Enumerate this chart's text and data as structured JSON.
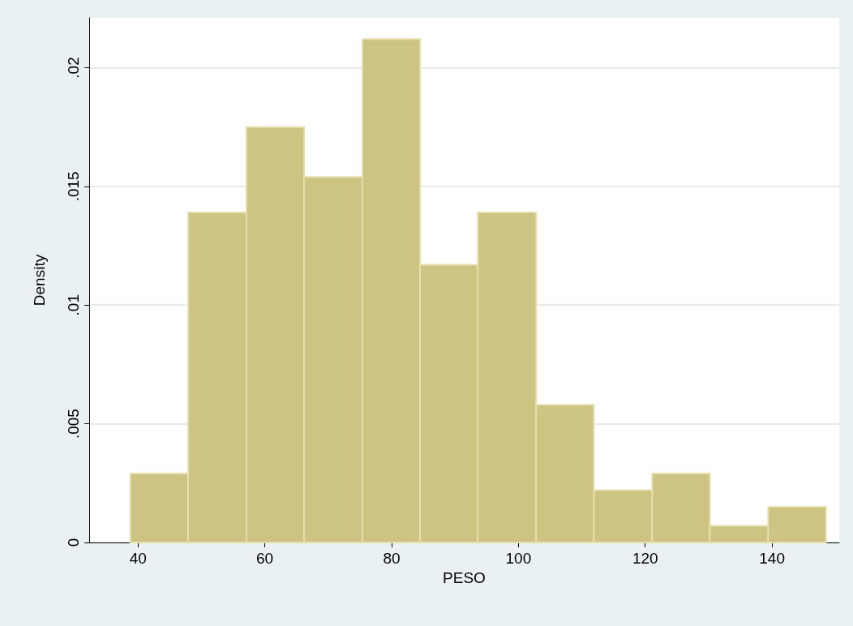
{
  "chart_data": {
    "type": "histogram",
    "xlabel": "PESO",
    "ylabel": "Density",
    "bins": [
      38.8,
      47.9,
      57.1,
      66.2,
      75.4,
      84.5,
      93.6,
      102.8,
      111.9,
      121.1,
      130.2,
      139.4,
      148.5
    ],
    "values": [
      0.0029,
      0.0139,
      0.0175,
      0.0154,
      0.0212,
      0.0117,
      0.0139,
      0.0058,
      0.0022,
      0.0029,
      0.0007,
      0.0015
    ],
    "color": "#cdc383",
    "xlim": [
      32.3,
      150.6
    ],
    "xticks": [
      40,
      60,
      80,
      100,
      120,
      140
    ],
    "ylim": [
      0,
      0.0221
    ],
    "yticks": [
      {
        "value": 0,
        "label": "0"
      },
      {
        "value": 0.005,
        "label": ".005"
      },
      {
        "value": 0.01,
        "label": ".01"
      },
      {
        "value": 0.015,
        "label": ".015"
      },
      {
        "value": 0.02,
        "label": ".02"
      }
    ],
    "grid": "y"
  }
}
